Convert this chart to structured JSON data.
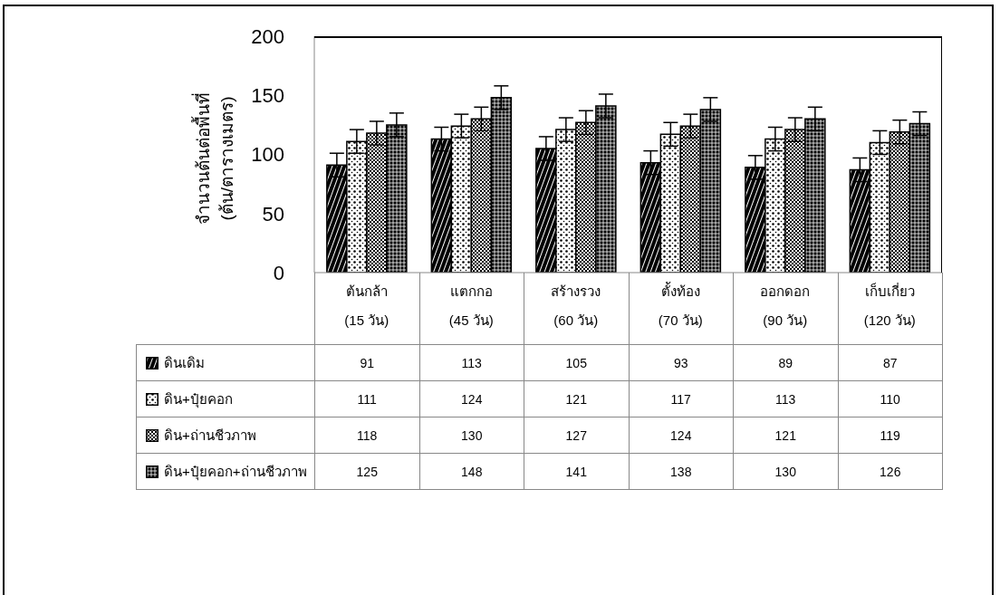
{
  "chart_data": {
    "type": "bar",
    "ylabel": "จำนวนต้นต่อพื้นที่\n(ต้น/ตารางเมตร)",
    "categories": [
      "ต้นกล้า\n(15 วัน)",
      "แตกกอ\n(45 วัน)",
      "สร้างรวง\n(60 วัน)",
      "ตั้งท้อง\n(70 วัน)",
      "ออกดอก\n(90 วัน)",
      "เก็บเกี่ยว\n(120 วัน)"
    ],
    "series": [
      {
        "name": "ดินเดิม",
        "color": "#000000",
        "values": [
          91,
          113,
          105,
          93,
          89,
          87
        ],
        "errors": [
          10,
          10,
          10,
          10,
          10,
          10
        ]
      },
      {
        "name": "ดิน+ปุ๋ยคอก",
        "color": "#000000",
        "values": [
          111,
          124,
          121,
          117,
          113,
          110
        ],
        "errors": [
          10,
          10,
          10,
          10,
          10,
          10
        ]
      },
      {
        "name": "ดิน+ถ่านชีวภาพ",
        "color": "#000000",
        "values": [
          118,
          130,
          127,
          124,
          121,
          119
        ],
        "errors": [
          10,
          10,
          10,
          10,
          10,
          10
        ]
      },
      {
        "name": "ดิน+ปุ๋ยคอก+ถ่านชีวภาพ",
        "color": "#000000",
        "values": [
          125,
          148,
          141,
          138,
          130,
          126
        ],
        "errors": [
          10,
          10,
          10,
          10,
          10,
          10
        ]
      }
    ],
    "ylim": [
      0,
      200
    ],
    "yticks": [
      0,
      50,
      100,
      150,
      200
    ],
    "grid": false,
    "legend": "bottom",
    "data_labels": true
  }
}
